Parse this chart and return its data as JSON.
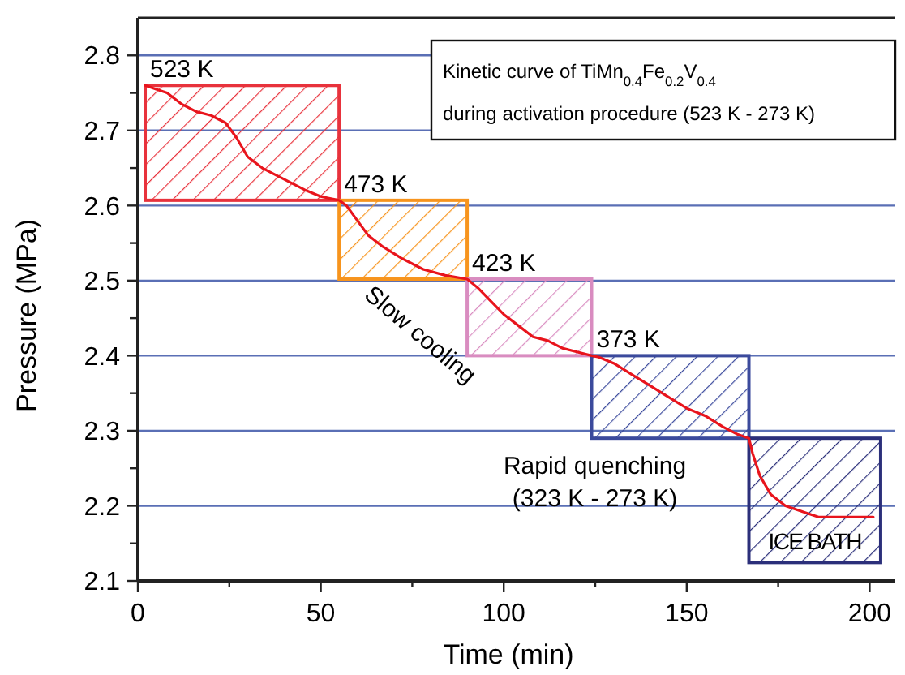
{
  "chart_data": {
    "type": "line",
    "title": "Kinetic curve of TiMn$_{0.4}$Fe$_{0.2}$V$_{0.4}$",
    "subtitle": "during activation procedure (523 K - 273 K)",
    "xlabel": "Time (min)",
    "ylabel": "Pressure (MPa)",
    "x": [
      2,
      5,
      8,
      12,
      16,
      20,
      24,
      27,
      30,
      34,
      38,
      42,
      46,
      50,
      55,
      57,
      60,
      63,
      67,
      72,
      78,
      84,
      90,
      93,
      97,
      100,
      104,
      108,
      112,
      116,
      120,
      124,
      126,
      130,
      135,
      140,
      145,
      150,
      155,
      160,
      164,
      167,
      168,
      170,
      173,
      177,
      183,
      186,
      195,
      201
    ],
    "series": [
      {
        "color": "#e8141c",
        "values": [
          2.76,
          2.755,
          2.75,
          2.735,
          2.725,
          2.72,
          2.71,
          2.69,
          2.665,
          2.65,
          2.64,
          2.63,
          2.62,
          2.612,
          2.607,
          2.6,
          2.58,
          2.56,
          2.545,
          2.53,
          2.515,
          2.507,
          2.502,
          2.49,
          2.47,
          2.455,
          2.44,
          2.425,
          2.42,
          2.41,
          2.405,
          2.4,
          2.398,
          2.39,
          2.375,
          2.36,
          2.345,
          2.33,
          2.32,
          2.305,
          2.295,
          2.29,
          2.27,
          2.24,
          2.215,
          2.2,
          2.19,
          2.185,
          2.185,
          2.185
        ]
      }
    ],
    "xlim": [
      0,
      207
    ],
    "ylim": [
      2.1,
      2.85
    ],
    "xticks": [
      0,
      {
        "value": 25,
        "label": null
      },
      50,
      {
        "value": 75,
        "label": null
      },
      100,
      {
        "value": 125,
        "label": null
      },
      150,
      {
        "value": 175,
        "label": null
      },
      200
    ],
    "yticks": [
      2.1,
      {
        "value": 2.15,
        "label": null
      },
      2.2,
      {
        "value": 2.25,
        "label": null
      },
      2.3,
      {
        "value": 2.35,
        "label": null
      },
      2.4,
      {
        "value": 2.45,
        "label": null
      },
      2.5,
      {
        "value": 2.55,
        "label": null
      },
      2.6,
      {
        "value": 2.65,
        "label": null
      },
      2.7,
      {
        "value": 2.75,
        "label": null
      },
      2.8
    ],
    "grid": "y",
    "marker": "none",
    "line_style": "solid",
    "bands": [
      {
        "axis": "x",
        "from": 2,
        "to": 55,
        "color": "#e8323c",
        "label": "523 K"
      },
      {
        "axis": "x",
        "from": 55,
        "to": 90,
        "color": "#f7941d",
        "label": "473 K"
      },
      {
        "axis": "x",
        "from": 90,
        "to": 124,
        "color": "#d98cc0",
        "label": "423 K"
      },
      {
        "axis": "x",
        "from": 124,
        "to": 167,
        "color": "#3b4a9c",
        "label": "373 K"
      },
      {
        "axis": "x",
        "from": 167,
        "to": 203,
        "color": "#2b2f7a",
        "label": "ICE BATH"
      }
    ],
    "annotations": [
      "Slow cooling",
      "Rapid quenching\n(323 K - 273 K)"
    ]
  }
}
